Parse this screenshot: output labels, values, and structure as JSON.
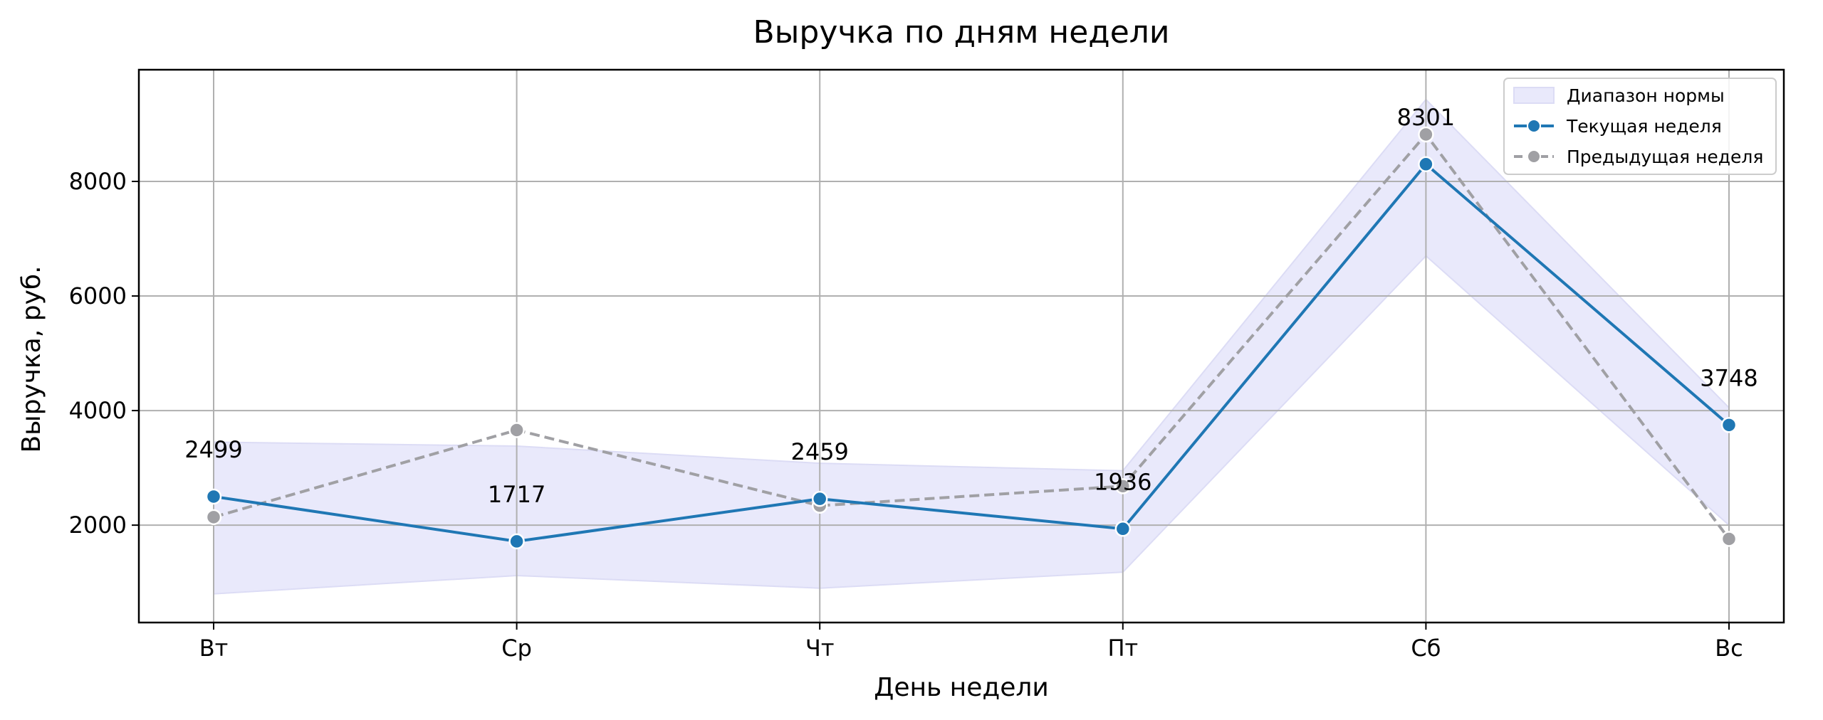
{
  "chart_data": {
    "type": "line",
    "title": "Выручка по дням недели",
    "xlabel": "День недели",
    "ylabel": "Выручка, руб.",
    "categories": [
      "Вт",
      "Ср",
      "Чт",
      "Пт",
      "Сб",
      "Вс"
    ],
    "ylim": [
      300,
      9950
    ],
    "yticks": [
      2000,
      4000,
      6000,
      8000
    ],
    "grid": true,
    "legend_position": "top-right",
    "band": {
      "name": "Диапазон нормы",
      "lower": [
        800,
        1120,
        900,
        1180,
        6700,
        2000
      ],
      "upper": [
        3450,
        3380,
        3080,
        2950,
        9430,
        4050
      ],
      "color": "#e9e9fb"
    },
    "series": [
      {
        "name": "Текущая неделя",
        "values": [
          2499,
          1717,
          2459,
          1936,
          8301,
          3748
        ],
        "labels": [
          "2499",
          "1717",
          "2459",
          "1936",
          "8301",
          "3748"
        ],
        "color": "#1f77b4",
        "style": "solid"
      },
      {
        "name": "Предыдущая неделя",
        "values": [
          2140,
          3660,
          2340,
          2680,
          8820,
          1760
        ],
        "color": "#a0a0a4",
        "style": "dashed"
      }
    ]
  }
}
